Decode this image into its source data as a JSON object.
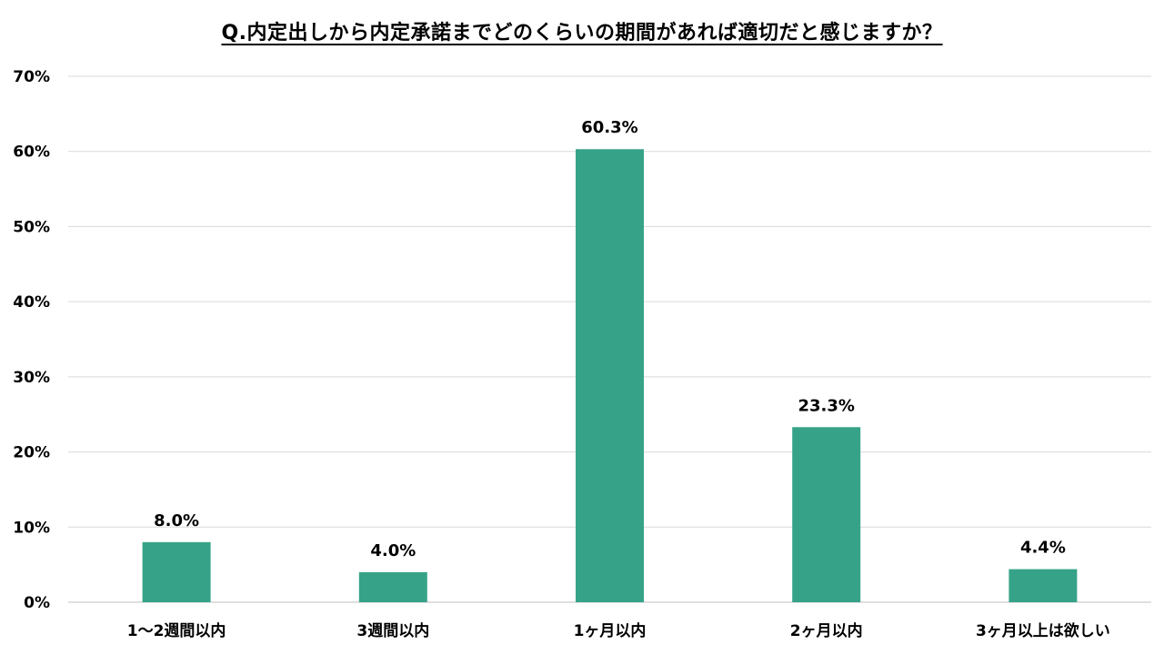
{
  "chart_data": {
    "type": "bar",
    "title": "Q.内定出しから内定承諾までどのくらいの期間があれば適切だと感じますか？",
    "xlabel": "",
    "ylabel": "",
    "categories": [
      "1～2週間以内",
      "3週間以内",
      "1ヶ月以内",
      "2ヶ月以内",
      "3ヶ月以上は欲しい"
    ],
    "values": [
      8.0,
      4.0,
      60.3,
      23.3,
      4.4
    ],
    "value_labels": [
      "8.0%",
      "4.0%",
      "60.3%",
      "23.3%",
      "4.4%"
    ],
    "ylim": [
      0,
      70
    ],
    "yticks": [
      0,
      10,
      20,
      30,
      40,
      50,
      60,
      70
    ],
    "ytick_labels": [
      "0%",
      "10%",
      "20%",
      "30%",
      "40%",
      "50%",
      "60%",
      "70%"
    ],
    "grid": true,
    "legend": "none",
    "colors": {
      "bar": "#36A388",
      "grid": "#D9D9D9",
      "text": "#000000"
    }
  }
}
